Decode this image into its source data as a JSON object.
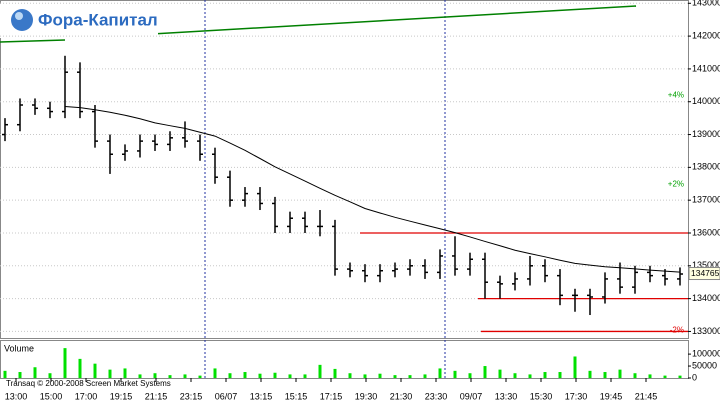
{
  "logo": "Фора-Капитал",
  "chart_data": {
    "type": "ohlc",
    "x_labels": [
      "13:00",
      "15:00",
      "17:00",
      "19:15",
      "21:15",
      "23:15",
      "06/07",
      "13:15",
      "15:15",
      "17:15",
      "19:30",
      "21:30",
      "23:30",
      "09/07",
      "13:30",
      "15:30",
      "17:30",
      "19:45",
      "21:45"
    ],
    "open": [
      139000,
      139300,
      139900,
      139800,
      139700,
      140900,
      139700,
      138800,
      138400,
      138500,
      138800,
      138700,
      138900,
      138800,
      138400,
      137700,
      137000,
      137200,
      136900,
      136200,
      136450,
      136200,
      136200,
      134900,
      134850,
      134700,
      134850,
      134900,
      135000,
      134800,
      135300,
      134900,
      135200,
      134500,
      134450,
      134600,
      135000,
      134700,
      134100,
      134100,
      134050,
      134600,
      134350,
      134800,
      134700,
      134600
    ],
    "high": [
      139500,
      140100,
      140100,
      140000,
      141400,
      141200,
      139900,
      139000,
      138700,
      139000,
      139000,
      139100,
      139400,
      139000,
      138600,
      137900,
      137400,
      137400,
      137100,
      136650,
      136650,
      136700,
      136400,
      135100,
      135050,
      135050,
      135100,
      135200,
      135200,
      135500,
      135900,
      135400,
      135400,
      134700,
      134800,
      135300,
      135200,
      134900,
      134300,
      134300,
      134800,
      135100,
      135000,
      135000,
      134900,
      134950
    ],
    "low": [
      138800,
      139100,
      139600,
      139500,
      139500,
      139500,
      138600,
      137800,
      138200,
      138300,
      138500,
      138500,
      138600,
      138200,
      137500,
      136800,
      136800,
      136700,
      136000,
      136000,
      136000,
      135900,
      134700,
      134650,
      134500,
      134500,
      134650,
      134700,
      134600,
      134600,
      134700,
      134700,
      134000,
      134000,
      134250,
      134400,
      134500,
      133800,
      133600,
      133500,
      133850,
      134150,
      134150,
      134500,
      134400,
      134400
    ],
    "close": [
      139300,
      139900,
      139800,
      139700,
      140900,
      139700,
      138800,
      138400,
      138500,
      138800,
      138700,
      138900,
      138800,
      138400,
      137700,
      137000,
      137200,
      136900,
      136200,
      136450,
      136200,
      136200,
      134900,
      134850,
      134700,
      134850,
      134900,
      135000,
      134800,
      135300,
      134900,
      135200,
      134500,
      134450,
      134600,
      135000,
      134700,
      134100,
      134100,
      134050,
      134600,
      134350,
      134800,
      134700,
      134600,
      134750
    ],
    "ma": [
      null,
      null,
      null,
      null,
      139856,
      139820,
      139756,
      139680,
      139589,
      139480,
      139355,
      139270,
      139187,
      139070,
      138953,
      138740,
      138518,
      138270,
      138017,
      137800,
      137582,
      137360,
      137147,
      136950,
      136746,
      136610,
      136478,
      136360,
      136244,
      136130,
      136010,
      135880,
      135742,
      135610,
      135475,
      135370,
      135274,
      135170,
      135074,
      135020,
      134973,
      134940,
      134906,
      134870,
      134839,
      134806
    ],
    "color": "#000000",
    "ma_color": "#000000",
    "ylim": [
      132800,
      143100
    ],
    "yticks": [
      133000,
      134000,
      135000,
      136000,
      137000,
      138000,
      139000,
      140000,
      141000,
      142000,
      143000
    ],
    "last_price": 134765,
    "levels": [
      {
        "value": 136000,
        "color": "#e00000"
      },
      {
        "value": 134000,
        "color": "#e00000"
      },
      {
        "value": 133000,
        "color": "#e00000",
        "label": "-2%"
      },
      {
        "value": 140160,
        "color": "#00a000",
        "label": "+4%"
      },
      {
        "value": 137450,
        "color": "#00a000",
        "label": "+2%"
      }
    ],
    "volume": {
      "label": "Volume",
      "color": "#00e000",
      "values": [
        30000,
        25000,
        45000,
        20000,
        125000,
        80000,
        60000,
        35000,
        40000,
        15000,
        20000,
        12000,
        15000,
        10000,
        40000,
        20000,
        25000,
        18000,
        22000,
        15000,
        15000,
        55000,
        38000,
        20000,
        15000,
        18000,
        12000,
        12000,
        15000,
        40000,
        30000,
        20000,
        50000,
        35000,
        20000,
        15000,
        25000,
        25000,
        90000,
        30000,
        25000,
        35000,
        20000,
        15000,
        10000,
        10000
      ],
      "ylim": [
        0,
        159000
      ],
      "yticks": [
        0,
        50000,
        100000
      ]
    },
    "copyright": "Transaq © 2000-2008 Screen Market Systems"
  }
}
